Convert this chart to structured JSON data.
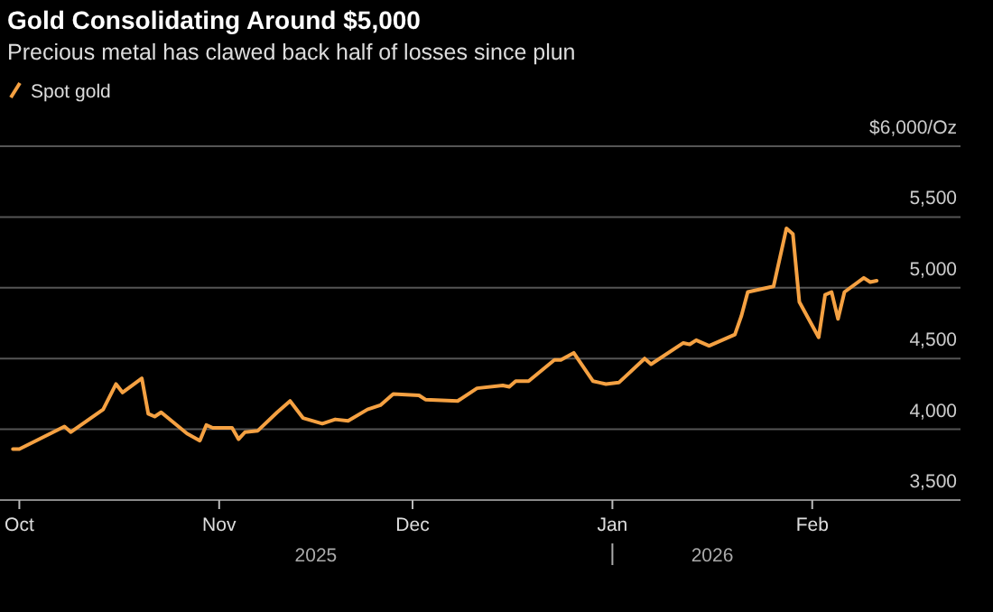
{
  "chart_data": {
    "type": "line",
    "title": "Gold Consolidating Around $5,000",
    "subtitle": "Precious metal has clawed back half of losses since plun",
    "x": [
      "2025-09-30",
      "2025-10-01",
      "2025-10-08",
      "2025-10-09",
      "2025-10-14",
      "2025-10-16",
      "2025-10-17",
      "2025-10-20",
      "2025-10-21",
      "2025-10-22",
      "2025-10-23",
      "2025-10-27",
      "2025-10-29",
      "2025-10-30",
      "2025-10-31",
      "2025-11-03",
      "2025-11-04",
      "2025-11-05",
      "2025-11-07",
      "2025-11-10",
      "2025-11-12",
      "2025-11-14",
      "2025-11-17",
      "2025-11-19",
      "2025-11-21",
      "2025-11-24",
      "2025-11-26",
      "2025-11-28",
      "2025-12-02",
      "2025-12-03",
      "2025-12-08",
      "2025-12-11",
      "2025-12-15",
      "2025-12-16",
      "2025-12-17",
      "2025-12-19",
      "2025-12-23",
      "2025-12-24",
      "2025-12-26",
      "2025-12-29",
      "2025-12-30",
      "2025-12-31",
      "2026-01-02",
      "2026-01-06",
      "2026-01-07",
      "2026-01-12",
      "2026-01-13",
      "2026-01-14",
      "2026-01-16",
      "2026-01-20",
      "2026-01-21",
      "2026-01-22",
      "2026-01-26",
      "2026-01-28",
      "2026-01-29",
      "2026-01-30",
      "2026-02-02",
      "2026-02-03",
      "2026-02-04",
      "2026-02-05",
      "2026-02-06",
      "2026-02-09",
      "2026-02-10",
      "2026-02-11"
    ],
    "series": [
      {
        "name": "Spot gold",
        "color": "#f5a142",
        "values": [
          3860,
          3860,
          4020,
          3980,
          4140,
          4320,
          4260,
          4360,
          4110,
          4090,
          4120,
          3970,
          3920,
          4030,
          4010,
          4010,
          3930,
          3980,
          3990,
          4120,
          4200,
          4080,
          4040,
          4070,
          4060,
          4140,
          4170,
          4250,
          4240,
          4210,
          4200,
          4290,
          4310,
          4300,
          4340,
          4340,
          4490,
          4490,
          4540,
          4340,
          4330,
          4320,
          4330,
          4500,
          4460,
          4610,
          4600,
          4630,
          4590,
          4670,
          4800,
          4970,
          5010,
          5420,
          5380,
          4900,
          4650,
          4950,
          4970,
          4780,
          4970,
          5070,
          5040,
          5050
        ]
      }
    ],
    "xlim": [
      "2025-09-28",
      "2026-02-24"
    ],
    "xticks": [
      {
        "value": "2025-10-01",
        "label": "Oct"
      },
      {
        "value": "2025-11-01",
        "label": "Nov"
      },
      {
        "value": "2025-12-01",
        "label": "Dec"
      },
      {
        "value": "2026-01-01",
        "label": "Jan"
      },
      {
        "value": "2026-02-01",
        "label": "Feb"
      }
    ],
    "ylim": [
      3500,
      6000
    ],
    "yticks": [
      {
        "value": 3500,
        "label": "3,500"
      },
      {
        "value": 4000,
        "label": "4,000"
      },
      {
        "value": 4500,
        "label": "4,500"
      },
      {
        "value": 5000,
        "label": "5,000"
      },
      {
        "value": 5500,
        "label": "5,500"
      },
      {
        "value": 6000,
        "label": "$6,000/Oz"
      }
    ],
    "annotations": [
      "2025",
      "2026"
    ],
    "grid": "y",
    "legend": "top left",
    "line_style": "solid",
    "marker": "none"
  }
}
